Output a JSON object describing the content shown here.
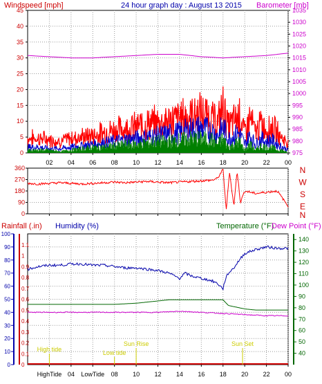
{
  "header": {
    "left_label": "Windspeed [mph]",
    "title": "24 hour graph day : August 13 2015",
    "right_label": "Barometer [mb]"
  },
  "bottom_header": {
    "rainfall": "Rainfall (.in)",
    "humidity": "Humidity (%)",
    "temperature": "Temperature (°F)",
    "dewpoint": "Dew Point (°F)"
  },
  "colors": {
    "windspeed": "#ff0000",
    "windavg": "#0000cc",
    "windgust": "#008000",
    "barometer": "#cc00cc",
    "rain": "#cc0000",
    "humidity": "#0000aa",
    "temperature": "#006600",
    "dewpoint": "#cc00cc",
    "tide": "#cccc00"
  },
  "chart_data": [
    {
      "type": "line",
      "y_left": {
        "label": "Windspeed [mph]",
        "range": [
          0,
          45
        ],
        "ticks": [
          "0",
          "5",
          "10",
          "15",
          "20",
          "25",
          "30",
          "35",
          "40",
          "45"
        ]
      },
      "y_right": {
        "label": "Barometer [mb]",
        "range": [
          975,
          1035
        ],
        "ticks": [
          "975",
          "980",
          "985",
          "990",
          "995",
          "1000",
          "1005",
          "1010",
          "1015",
          "1020",
          "1025",
          "1030",
          "1035"
        ]
      },
      "x_ticks": [
        "02",
        "04",
        "06",
        "08",
        "10",
        "12",
        "14",
        "16",
        "18",
        "20",
        "22",
        "00"
      ],
      "series": [
        {
          "name": "",
          "color": "windspeed",
          "axis": "left",
          "x": [
            0,
            1,
            2,
            3,
            4,
            5,
            6,
            7,
            8,
            9,
            10,
            11,
            12,
            13,
            14,
            15,
            16,
            17,
            17.5,
            18,
            18.5,
            19,
            19.5,
            20,
            20.5,
            21,
            21.5,
            22,
            22.5,
            23,
            23.5,
            24
          ],
          "y": [
            4,
            4,
            3.5,
            3,
            4,
            4.5,
            5,
            6,
            7,
            7.5,
            8,
            9,
            9.5,
            10,
            11,
            12,
            12.5,
            11,
            9,
            15,
            8,
            10,
            12,
            6,
            11,
            6,
            9,
            7,
            8,
            6,
            4,
            2
          ]
        },
        {
          "name": "",
          "color": "windavg",
          "axis": "left",
          "x": [
            0,
            1,
            2,
            3,
            4,
            5,
            6,
            7,
            8,
            9,
            10,
            11,
            12,
            13,
            14,
            15,
            16,
            17,
            17.5,
            18,
            18.5,
            19,
            19.5,
            20,
            20.5,
            21,
            21.5,
            22,
            22.5,
            23,
            23.5,
            24
          ],
          "y": [
            2,
            2,
            1.5,
            1.5,
            2,
            2.5,
            3,
            3.5,
            4,
            4.5,
            5,
            5.5,
            6,
            6.5,
            7,
            8,
            8.5,
            7.5,
            6,
            9,
            5,
            6,
            7,
            3,
            6,
            3,
            5,
            4,
            4.5,
            3,
            2,
            1
          ]
        },
        {
          "name": "",
          "color": "windgust",
          "axis": "left",
          "x": [
            0,
            1,
            2,
            3,
            4,
            5,
            6,
            7,
            8,
            9,
            10,
            11,
            12,
            13,
            14,
            15,
            16,
            17,
            17.5,
            18,
            18.5,
            19,
            19.5,
            20,
            20.5,
            21,
            21.5,
            22,
            22.5,
            23,
            23.5,
            24
          ],
          "y": [
            1,
            1,
            1,
            0.5,
            1,
            1.5,
            2,
            2,
            2.5,
            3,
            3,
            3.5,
            4,
            4,
            4.5,
            5,
            5,
            4.5,
            3,
            5,
            2,
            3,
            4,
            1,
            3,
            1,
            2.5,
            2,
            2,
            1,
            1,
            0
          ]
        },
        {
          "name": "",
          "color": "barometer",
          "axis": "right",
          "x": [
            0,
            2,
            4,
            6,
            8,
            10,
            12,
            14,
            16,
            18,
            20,
            22,
            24
          ],
          "y": [
            1016,
            1015.5,
            1015,
            1015,
            1015.5,
            1016,
            1016.5,
            1016.5,
            1015.5,
            1015,
            1015.5,
            1016,
            1017
          ]
        }
      ]
    },
    {
      "type": "line",
      "y_left": {
        "label": "",
        "range": [
          0,
          360
        ],
        "ticks": [
          "0",
          "90",
          "180",
          "270",
          "360"
        ]
      },
      "y_right_letters": [
        "N",
        "W",
        "S",
        "E",
        "N"
      ],
      "series": [
        {
          "name": "",
          "color": "windspeed",
          "x": [
            0,
            1,
            2,
            3,
            4,
            5,
            6,
            7,
            8,
            9,
            10,
            11,
            12,
            13,
            14,
            15,
            16,
            17,
            17.5,
            18,
            18.3,
            18.6,
            19,
            19.3,
            19.6,
            20,
            21,
            22,
            23,
            23.5,
            24
          ],
          "y": [
            240,
            235,
            240,
            245,
            240,
            235,
            240,
            245,
            250,
            245,
            250,
            255,
            250,
            245,
            250,
            255,
            260,
            265,
            280,
            350,
            30,
            330,
            60,
            340,
            90,
            180,
            160,
            170,
            180,
            120,
            60
          ]
        }
      ]
    },
    {
      "type": "line",
      "y_left": {
        "label": "Humidity (%)",
        "range": [
          0,
          100
        ],
        "ticks": [
          "0",
          "10",
          "20",
          "30",
          "40",
          "50",
          "60",
          "70",
          "80",
          "90",
          "100"
        ]
      },
      "y_rain": {
        "label": "Rainfall (.in)",
        "range": [
          0,
          1.2
        ],
        "ticks": [
          "0",
          "0.1",
          "0.2",
          "0.3",
          "0.4",
          "0.5",
          "0.6",
          "0.7",
          "0.8",
          "0.9",
          "1",
          "1.1"
        ]
      },
      "y_right": {
        "label": "Temperature (°F)",
        "range": [
          30,
          145
        ],
        "ticks": [
          "40",
          "50",
          "60",
          "70",
          "80",
          "90",
          "100",
          "110",
          "120",
          "130",
          "140"
        ]
      },
      "x_ticks": [
        "02",
        "04",
        "06",
        "08",
        "10",
        "12",
        "14",
        "16",
        "18",
        "20",
        "22",
        "00"
      ],
      "series": [
        {
          "name": "",
          "color": "humidity",
          "axis": "left",
          "x": [
            0,
            1,
            2,
            3,
            4,
            5,
            6,
            7,
            8,
            9,
            10,
            11,
            12,
            13,
            14,
            14.5,
            15,
            16,
            17,
            17.5,
            18,
            18.2,
            18.5,
            19,
            19.5,
            20,
            21,
            22,
            23,
            24
          ],
          "y": [
            73,
            75,
            76,
            76,
            77,
            77,
            76,
            76,
            75,
            74,
            74,
            73,
            72,
            70,
            66,
            70,
            68,
            66,
            64,
            62,
            58,
            65,
            70,
            74,
            80,
            85,
            88,
            90,
            89,
            89
          ]
        },
        {
          "name": "",
          "color": "temperature",
          "axis": "right",
          "x": [
            0,
            2,
            4,
            6,
            8,
            10,
            12,
            13,
            14,
            15,
            16,
            17,
            18,
            18.5,
            19,
            20,
            21,
            22,
            23,
            24
          ],
          "y": [
            83,
            83,
            83,
            83,
            83,
            84,
            86,
            87,
            87,
            87,
            87,
            87,
            87,
            82,
            81,
            79,
            78,
            78,
            78,
            78
          ]
        },
        {
          "name": "",
          "color": "dewpoint",
          "axis": "right",
          "x": [
            0,
            2,
            4,
            6,
            8,
            10,
            12,
            14,
            16,
            18,
            20,
            22,
            24
          ],
          "y": [
            76,
            76,
            76,
            76,
            76,
            76,
            76,
            77,
            76,
            75,
            74,
            73,
            73
          ]
        },
        {
          "name": "",
          "color": "rain",
          "axis": "rain",
          "x": [
            0,
            24
          ],
          "y": [
            0,
            0
          ]
        }
      ],
      "annotations": [
        {
          "text": "High tide",
          "x": 2
        },
        {
          "text": "Low tide",
          "x": 8
        },
        {
          "text": "Sun Rise",
          "x": 10
        },
        {
          "text": "Sun Set",
          "x": 19.8
        }
      ],
      "bottom_labels": [
        "HighTide",
        "04",
        "LowTide",
        "08",
        "10",
        "12",
        "14",
        "16",
        "18",
        "20",
        "22",
        "00"
      ]
    }
  ]
}
